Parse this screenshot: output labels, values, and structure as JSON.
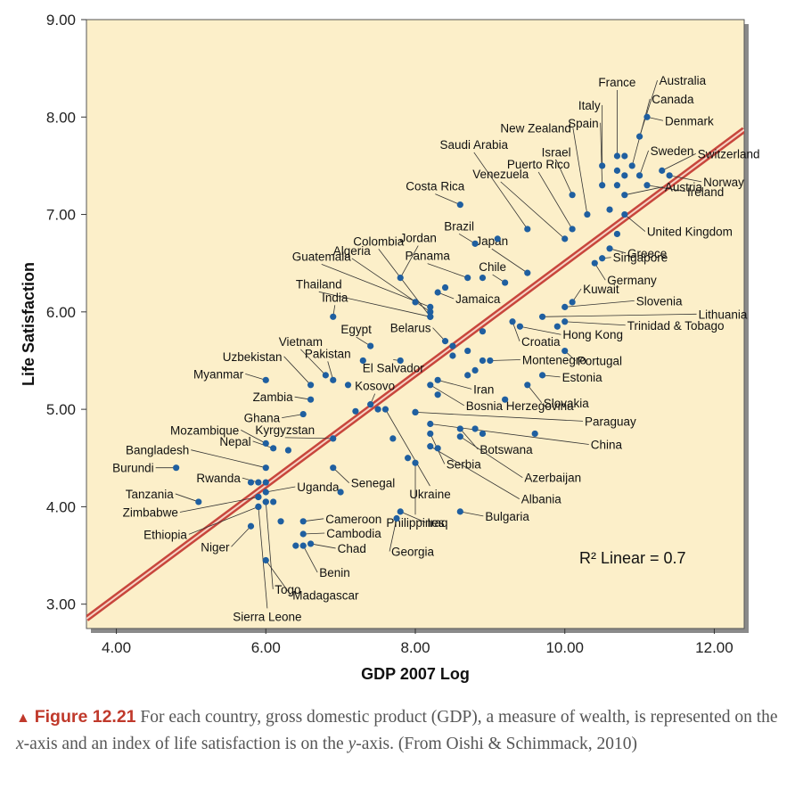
{
  "chart_data": {
    "type": "scatter",
    "xlabel": "GDP 2007 Log",
    "ylabel": "Life Satisfaction",
    "xlim": [
      3.6,
      12.4
    ],
    "ylim": [
      2.75,
      9.0
    ],
    "xticks": [
      "4.00",
      "6.00",
      "8.00",
      "10.00",
      "12.00"
    ],
    "yticks": [
      "3.00",
      "4.00",
      "5.00",
      "6.00",
      "7.00",
      "8.00",
      "9.00"
    ],
    "grid": false,
    "annotation": "R² Linear = 0.7",
    "colors": {
      "plot_bg": "#fcefc9",
      "marker": "#1f5fa0",
      "fit_line": "#c8463c",
      "leader": "#333333"
    },
    "fit_line": {
      "start": [
        3.6,
        2.85
      ],
      "end": [
        12.4,
        7.87
      ]
    },
    "points": [
      {
        "x": 10.7,
        "y": 7.6,
        "label": "France"
      },
      {
        "x": 10.5,
        "y": 7.5,
        "label": "Italy"
      },
      {
        "x": 10.9,
        "y": 7.5,
        "label": "Canada"
      },
      {
        "x": 11.0,
        "y": 7.8,
        "label": "Australia"
      },
      {
        "x": 10.3,
        "y": 7.0,
        "label": "New Zealand"
      },
      {
        "x": 10.5,
        "y": 7.3,
        "label": "Spain"
      },
      {
        "x": 11.1,
        "y": 8.0,
        "label": "Denmark"
      },
      {
        "x": 11.0,
        "y": 7.4,
        "label": "Sweden"
      },
      {
        "x": 11.3,
        "y": 7.45,
        "label": "Switzerland"
      },
      {
        "x": 11.4,
        "y": 7.4,
        "label": "Norway"
      },
      {
        "x": 11.1,
        "y": 7.3,
        "label": "Ireland"
      },
      {
        "x": 10.8,
        "y": 7.2,
        "label": "Austria"
      },
      {
        "x": 10.8,
        "y": 7.0,
        "label": "United Kingdom"
      },
      {
        "x": 10.6,
        "y": 6.65,
        "label": "Greece"
      },
      {
        "x": 10.5,
        "y": 6.55,
        "label": "Singapore"
      },
      {
        "x": 10.4,
        "y": 6.5,
        "label": "Germany"
      },
      {
        "x": 10.1,
        "y": 6.1,
        "label": "Kuwait"
      },
      {
        "x": 10.0,
        "y": 6.05,
        "label": "Slovenia"
      },
      {
        "x": 9.7,
        "y": 5.95,
        "label": "Lithuania"
      },
      {
        "x": 10.0,
        "y": 5.9,
        "label": "Trinidad & Tobago"
      },
      {
        "x": 9.3,
        "y": 5.9,
        "label": "Croatia"
      },
      {
        "x": 9.4,
        "y": 5.85,
        "label": "Hong Kong"
      },
      {
        "x": 10.0,
        "y": 5.6,
        "label": "Portugal"
      },
      {
        "x": 9.0,
        "y": 5.5,
        "label": "Montenegro"
      },
      {
        "x": 9.7,
        "y": 5.35,
        "label": "Estonia"
      },
      {
        "x": 9.5,
        "y": 5.25,
        "label": "Slovakia"
      },
      {
        "x": 8.3,
        "y": 5.3,
        "label": "Iran"
      },
      {
        "x": 8.2,
        "y": 5.25,
        "label": "Bosnia Herzegovina"
      },
      {
        "x": 8.0,
        "y": 4.97,
        "label": "Paraguay"
      },
      {
        "x": 8.2,
        "y": 4.85,
        "label": "China"
      },
      {
        "x": 8.6,
        "y": 4.8,
        "label": "Botswana"
      },
      {
        "x": 8.2,
        "y": 4.75,
        "label": "Serbia"
      },
      {
        "x": 8.6,
        "y": 4.72,
        "label": "Azerbaijan"
      },
      {
        "x": 8.2,
        "y": 4.62,
        "label": "Albania"
      },
      {
        "x": 8.6,
        "y": 3.95,
        "label": "Bulgaria"
      },
      {
        "x": 7.8,
        "y": 3.95,
        "label": "Iraq"
      },
      {
        "x": 7.75,
        "y": 3.88,
        "label": "Georgia"
      },
      {
        "x": 8.6,
        "y": 7.1,
        "label": "Costa Rica"
      },
      {
        "x": 9.5,
        "y": 6.85,
        "label": "Saudi Arabia"
      },
      {
        "x": 10.1,
        "y": 6.85,
        "label": "Puerto Rico"
      },
      {
        "x": 10.1,
        "y": 7.2,
        "label": "Israel"
      },
      {
        "x": 10.0,
        "y": 6.75,
        "label": "Venezuela"
      },
      {
        "x": 9.5,
        "y": 6.4,
        "label": "Japan"
      },
      {
        "x": 8.8,
        "y": 6.7,
        "label": "Brazil"
      },
      {
        "x": 8.7,
        "y": 6.35,
        "label": "Panama"
      },
      {
        "x": 9.2,
        "y": 6.3,
        "label": "Chile"
      },
      {
        "x": 8.3,
        "y": 6.2,
        "label": "Jamaica"
      },
      {
        "x": 7.8,
        "y": 6.35,
        "label": "Jordan"
      },
      {
        "x": 8.2,
        "y": 5.95,
        "label": "Colombia"
      },
      {
        "x": 8.2,
        "y": 6.0,
        "label": "Algeria"
      },
      {
        "x": 8.2,
        "y": 6.05,
        "label": "Guatemala"
      },
      {
        "x": 8.2,
        "y": 5.95,
        "label": "Thailand"
      },
      {
        "x": 6.9,
        "y": 5.95,
        "label": "India"
      },
      {
        "x": 7.4,
        "y": 5.65,
        "label": "Egypt"
      },
      {
        "x": 8.4,
        "y": 5.7,
        "label": "Belarus"
      },
      {
        "x": 7.8,
        "y": 5.5,
        "label": "El Salvador"
      },
      {
        "x": 6.8,
        "y": 5.35,
        "label": "Vietnam"
      },
      {
        "x": 6.9,
        "y": 5.3,
        "label": "Pakistan"
      },
      {
        "x": 6.6,
        "y": 5.25,
        "label": "Uzbekistan"
      },
      {
        "x": 6.0,
        "y": 5.3,
        "label": "Myanmar"
      },
      {
        "x": 7.4,
        "y": 5.05,
        "label": "Kosovo"
      },
      {
        "x": 6.6,
        "y": 5.1,
        "label": "Zambia"
      },
      {
        "x": 6.5,
        "y": 4.95,
        "label": "Ghana"
      },
      {
        "x": 6.9,
        "y": 4.7,
        "label": "Kyrgyzstan"
      },
      {
        "x": 6.0,
        "y": 4.65,
        "label": "Mozambique"
      },
      {
        "x": 6.1,
        "y": 4.6,
        "label": "Nepal"
      },
      {
        "x": 6.9,
        "y": 4.4,
        "label": "Senegal"
      },
      {
        "x": 6.0,
        "y": 4.4,
        "label": "Bangladesh"
      },
      {
        "x": 4.8,
        "y": 4.4,
        "label": "Burundi"
      },
      {
        "x": 5.9,
        "y": 4.25,
        "label": "Rwanda"
      },
      {
        "x": 7.6,
        "y": 5.0,
        "label": "Ukraine"
      },
      {
        "x": 8.0,
        "y": 4.45,
        "label": "Philippines"
      },
      {
        "x": 6.0,
        "y": 4.15,
        "label": "Uganda"
      },
      {
        "x": 5.1,
        "y": 4.05,
        "label": "Tanzania"
      },
      {
        "x": 5.9,
        "y": 4.1,
        "label": "Zimbabwe"
      },
      {
        "x": 5.9,
        "y": 4.0,
        "label": "Ethiopia"
      },
      {
        "x": 6.5,
        "y": 3.85,
        "label": "Cameroon"
      },
      {
        "x": 6.5,
        "y": 3.72,
        "label": "Cambodia"
      },
      {
        "x": 6.6,
        "y": 3.62,
        "label": "Chad"
      },
      {
        "x": 6.5,
        "y": 3.6,
        "label": "Benin"
      },
      {
        "x": 5.8,
        "y": 3.8,
        "label": "Niger"
      },
      {
        "x": 6.0,
        "y": 3.45,
        "label": "Madagascar"
      },
      {
        "x": 6.0,
        "y": 4.05,
        "label": "Togo"
      },
      {
        "x": 5.9,
        "y": 4.0,
        "label": "Sierra Leone"
      },
      {
        "x": 9.1,
        "y": 6.75,
        "label": null
      },
      {
        "x": 8.9,
        "y": 6.35,
        "label": null
      },
      {
        "x": 8.4,
        "y": 6.25,
        "label": null
      },
      {
        "x": 8.0,
        "y": 6.1,
        "label": null
      },
      {
        "x": 8.5,
        "y": 5.65,
        "label": null
      },
      {
        "x": 8.9,
        "y": 5.8,
        "label": null
      },
      {
        "x": 8.7,
        "y": 5.6,
        "label": null
      },
      {
        "x": 8.5,
        "y": 5.55,
        "label": null
      },
      {
        "x": 8.9,
        "y": 5.5,
        "label": null
      },
      {
        "x": 8.7,
        "y": 5.35,
        "label": null
      },
      {
        "x": 8.3,
        "y": 5.15,
        "label": null
      },
      {
        "x": 8.8,
        "y": 5.4,
        "label": null
      },
      {
        "x": 9.2,
        "y": 5.1,
        "label": null
      },
      {
        "x": 9.9,
        "y": 5.85,
        "label": null
      },
      {
        "x": 7.1,
        "y": 5.25,
        "label": null
      },
      {
        "x": 7.2,
        "y": 4.98,
        "label": null
      },
      {
        "x": 7.5,
        "y": 5.0,
        "label": null
      },
      {
        "x": 7.7,
        "y": 4.7,
        "label": null
      },
      {
        "x": 7.3,
        "y": 5.5,
        "label": null
      },
      {
        "x": 6.3,
        "y": 4.58,
        "label": null
      },
      {
        "x": 6.2,
        "y": 3.85,
        "label": null
      },
      {
        "x": 7.0,
        "y": 4.15,
        "label": null
      },
      {
        "x": 8.0,
        "y": 4.97,
        "label": null
      },
      {
        "x": 8.3,
        "y": 4.6,
        "label": null
      },
      {
        "x": 8.8,
        "y": 4.8,
        "label": null
      },
      {
        "x": 8.9,
        "y": 4.75,
        "label": null
      },
      {
        "x": 9.6,
        "y": 4.75,
        "label": null
      },
      {
        "x": 7.9,
        "y": 4.5,
        "label": null
      },
      {
        "x": 5.8,
        "y": 4.25,
        "label": null
      },
      {
        "x": 6.0,
        "y": 4.05,
        "label": null
      },
      {
        "x": 5.9,
        "y": 4.1,
        "label": null
      },
      {
        "x": 6.1,
        "y": 4.05,
        "label": null
      },
      {
        "x": 6.0,
        "y": 4.25,
        "label": null
      },
      {
        "x": 6.4,
        "y": 3.6,
        "label": null
      },
      {
        "x": 10.7,
        "y": 7.45,
        "label": null
      },
      {
        "x": 10.8,
        "y": 7.4,
        "label": null
      },
      {
        "x": 10.7,
        "y": 7.3,
        "label": null
      },
      {
        "x": 10.8,
        "y": 7.6,
        "label": null
      },
      {
        "x": 10.6,
        "y": 7.05,
        "label": null
      },
      {
        "x": 10.7,
        "y": 6.8,
        "label": null
      }
    ]
  },
  "caption": {
    "figure_label": "Figure 12.21",
    "text_before_x": "For each country, gross domestic product (GDP), a measure of wealth, is represented on the ",
    "x_italic": "x",
    "text_middle": "-axis and an index of life satisfaction is on the ",
    "y_italic": "y",
    "text_after": "-axis. (From Oishi & Schimmack, 2010)"
  }
}
